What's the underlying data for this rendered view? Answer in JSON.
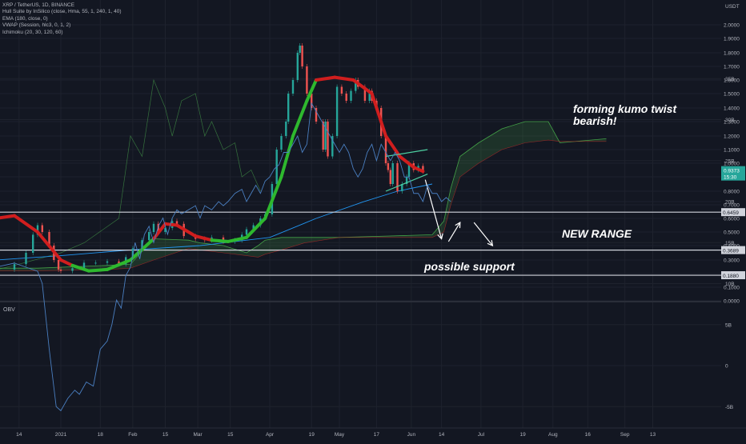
{
  "chart_data": {
    "type": "candlestick",
    "symbol_title": "XRP / TetherUS, 1D, BINANCE",
    "indicators": [
      "Hull Suite by InSilico (close, Hma, 55, 1, 240, 1, 40)",
      "EMA (180, close, 0)",
      "VWAP (Session, hlc3, 0, 1, 2)",
      "Ichimoku (20, 30, 120, 60)"
    ],
    "currency": "USDT",
    "y_scale": "log",
    "price_ticks": [
      "2.0000",
      "1.9000",
      "1.8000",
      "1.7000",
      "1.6000",
      "1.5000",
      "1.4000",
      "1.3000",
      "1.2000",
      "1.1000",
      "1.0000",
      "0.9000",
      "0.8000",
      "0.7000",
      "0.6000",
      "0.5000",
      "0.4000",
      "0.3000",
      "0.2000",
      "0.1000",
      "0.0000"
    ],
    "price_tick_values": [
      2.0,
      1.9,
      1.8,
      1.7,
      1.6,
      1.5,
      1.4,
      1.3,
      1.2,
      1.1,
      1.0,
      0.9,
      0.8,
      0.7,
      0.6,
      0.5,
      0.4,
      0.3,
      0.2,
      0.1,
      0.0
    ],
    "x_ticks": [
      "14",
      "2021",
      "18",
      "Feb",
      "15",
      "Mar",
      "15",
      "Apr",
      "19",
      "May",
      "17",
      "Jun",
      "14",
      "Jul",
      "19",
      "Aug",
      "16",
      "Sep",
      "13"
    ],
    "x_tick_days": [
      -18,
      0,
      17,
      31,
      45,
      59,
      73,
      90,
      108,
      120,
      136,
      151,
      164,
      181,
      199,
      212,
      227,
      243,
      255
    ],
    "horizontal_levels": [
      {
        "value": 0.6459,
        "label": "0.6459"
      },
      {
        "value": 0.3689,
        "label": "0.3689"
      },
      {
        "value": 0.188,
        "label": "0.1880"
      }
    ],
    "price_badge": {
      "value": "0.9373",
      "countdown": "15:30",
      "color": "#26a69a"
    },
    "annotations": {
      "kumo": "forming kumo twist\nbearish!",
      "range": "NEW RANGE",
      "support": "possible support"
    },
    "hull_colors": {
      "up": "#2eb82e",
      "down": "#d01e1e"
    },
    "price_path": [
      [
        -25,
        0.23
      ],
      [
        -20,
        0.27
      ],
      [
        -15,
        0.35
      ],
      [
        -12,
        0.48
      ],
      [
        -10,
        0.55
      ],
      [
        -8,
        0.5
      ],
      [
        -5,
        0.4
      ],
      [
        -3,
        0.3
      ],
      [
        -1,
        0.23
      ],
      [
        0,
        0.22
      ],
      [
        5,
        0.24
      ],
      [
        10,
        0.28
      ],
      [
        15,
        0.28
      ],
      [
        20,
        0.29
      ],
      [
        25,
        0.27
      ],
      [
        28,
        0.32
      ],
      [
        31,
        0.38
      ],
      [
        35,
        0.44
      ],
      [
        38,
        0.5
      ],
      [
        40,
        0.56
      ],
      [
        42,
        0.5
      ],
      [
        45,
        0.53
      ],
      [
        48,
        0.58
      ],
      [
        50,
        0.56
      ],
      [
        53,
        0.47
      ],
      [
        58,
        0.45
      ],
      [
        62,
        0.44
      ],
      [
        65,
        0.46
      ],
      [
        70,
        0.43
      ],
      [
        75,
        0.44
      ],
      [
        78,
        0.48
      ],
      [
        80,
        0.52
      ],
      [
        83,
        0.55
      ],
      [
        86,
        0.6
      ],
      [
        88,
        0.63
      ],
      [
        91,
        0.85
      ],
      [
        93,
        1.1
      ],
      [
        95,
        1.2
      ],
      [
        97,
        1.3
      ],
      [
        98,
        1.5
      ],
      [
        100,
        1.6
      ],
      [
        102,
        1.8
      ],
      [
        103,
        1.85
      ],
      [
        104,
        1.7
      ],
      [
        106,
        1.5
      ],
      [
        108,
        1.4
      ],
      [
        110,
        1.3
      ],
      [
        113,
        1.1
      ],
      [
        114,
        1.3
      ],
      [
        115,
        1.05
      ],
      [
        117,
        1.2
      ],
      [
        119,
        1.55
      ],
      [
        121,
        1.5
      ],
      [
        123,
        1.45
      ],
      [
        125,
        1.52
      ],
      [
        127,
        1.6
      ],
      [
        128,
        1.55
      ],
      [
        131,
        1.45
      ],
      [
        133,
        1.52
      ],
      [
        134,
        1.45
      ],
      [
        136,
        1.4
      ],
      [
        138,
        1.2
      ],
      [
        140,
        1.0
      ],
      [
        141,
        0.95
      ],
      [
        142,
        0.85
      ],
      [
        143,
        1.0
      ],
      [
        145,
        0.8
      ],
      [
        147,
        0.85
      ],
      [
        149,
        0.9
      ],
      [
        150,
        1.0
      ],
      [
        152,
        0.95
      ],
      [
        154,
        0.98
      ],
      [
        156,
        0.94
      ]
    ],
    "obv_axis": [
      "35B",
      "30B",
      "25B",
      "20B",
      "15B",
      "10B",
      "5B",
      "0",
      "-5B",
      "-10B"
    ],
    "obv_axis_values": [
      35,
      30,
      25,
      20,
      15,
      10,
      5,
      0,
      -5,
      -10
    ],
    "obv_title": "OBV",
    "obv_path": [
      [
        -28,
        12
      ],
      [
        -20,
        12.5
      ],
      [
        -15,
        12
      ],
      [
        -10,
        11.5
      ],
      [
        -8,
        10
      ],
      [
        -5,
        2
      ],
      [
        -2,
        -5
      ],
      [
        0,
        -5.5
      ],
      [
        3,
        -4
      ],
      [
        6,
        -3
      ],
      [
        8,
        -3.5
      ],
      [
        11,
        -2
      ],
      [
        14,
        -2.5
      ],
      [
        17,
        2
      ],
      [
        20,
        3
      ],
      [
        22,
        5
      ],
      [
        24,
        8
      ],
      [
        26,
        7
      ],
      [
        28,
        11
      ],
      [
        30,
        12
      ],
      [
        32,
        15
      ],
      [
        34,
        13
      ],
      [
        36,
        16
      ],
      [
        38,
        17
      ],
      [
        40,
        15
      ],
      [
        42,
        17
      ],
      [
        44,
        18
      ],
      [
        46,
        16
      ],
      [
        48,
        18
      ],
      [
        50,
        19
      ],
      [
        52,
        18.5
      ],
      [
        55,
        19
      ],
      [
        58,
        19.5
      ],
      [
        60,
        18
      ],
      [
        62,
        19.5
      ],
      [
        65,
        19
      ],
      [
        68,
        20
      ],
      [
        70,
        19.5
      ],
      [
        72,
        20
      ],
      [
        75,
        21
      ],
      [
        78,
        21.5
      ],
      [
        80,
        20
      ],
      [
        82,
        21
      ],
      [
        84,
        22
      ],
      [
        86,
        21
      ],
      [
        88,
        22.5
      ],
      [
        90,
        23
      ],
      [
        92,
        24
      ],
      [
        94,
        24.5
      ],
      [
        96,
        26
      ],
      [
        98,
        26
      ],
      [
        100,
        27
      ],
      [
        102,
        28
      ],
      [
        104,
        26
      ],
      [
        106,
        27
      ],
      [
        108,
        32
      ],
      [
        110,
        31
      ],
      [
        112,
        30
      ],
      [
        114,
        29
      ],
      [
        116,
        28
      ],
      [
        118,
        27
      ],
      [
        120,
        26
      ],
      [
        122,
        27
      ],
      [
        124,
        26
      ],
      [
        126,
        24
      ],
      [
        128,
        23
      ],
      [
        130,
        24
      ],
      [
        132,
        26
      ],
      [
        134,
        27
      ],
      [
        136,
        25
      ],
      [
        138,
        27
      ],
      [
        140,
        26
      ],
      [
        142,
        25
      ],
      [
        144,
        26
      ],
      [
        146,
        25
      ],
      [
        148,
        23
      ],
      [
        150,
        23
      ],
      [
        152,
        21
      ],
      [
        154,
        21
      ],
      [
        156,
        20
      ],
      [
        158,
        22
      ],
      [
        160,
        21
      ],
      [
        162,
        21
      ],
      [
        164,
        20
      ],
      [
        166,
        20.5
      ],
      [
        168,
        20
      ]
    ]
  }
}
